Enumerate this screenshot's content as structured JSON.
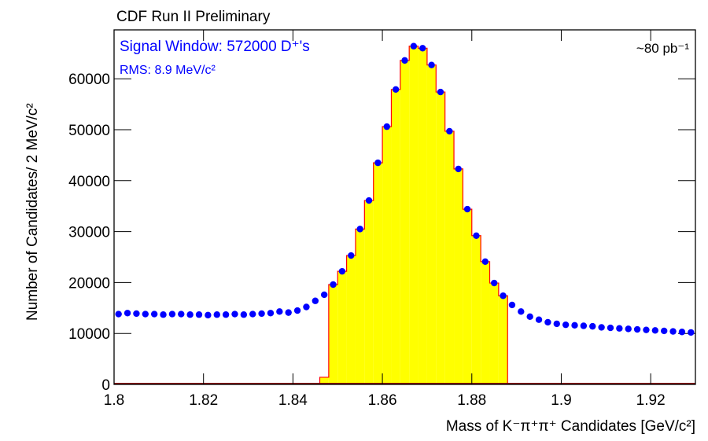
{
  "chart_data": {
    "type": "scatter",
    "title": "CDF Run II Preliminary",
    "x_label": "Mass of K⁻π⁺π⁺ Candidates [GeV/c²]",
    "y_label": "Number of Candidates/ 2 MeV/c²",
    "annotations": [
      "Signal Window:   572000 D⁺'s",
      "RMS: 8.9 MeV/c²",
      "~80 pb⁻¹"
    ],
    "xlim": [
      1.8,
      1.93
    ],
    "ylim": [
      0,
      69600
    ],
    "xticks": [
      1.8,
      1.82,
      1.84,
      1.86,
      1.88,
      1.9,
      1.92
    ],
    "yticks": [
      0,
      10000,
      20000,
      30000,
      40000,
      50000,
      60000
    ],
    "grid": false,
    "color": "#0000ff",
    "x": [
      1.801,
      1.803,
      1.805,
      1.807,
      1.809,
      1.811,
      1.813,
      1.815,
      1.817,
      1.819,
      1.821,
      1.823,
      1.825,
      1.827,
      1.829,
      1.831,
      1.833,
      1.835,
      1.837,
      1.839,
      1.841,
      1.843,
      1.845,
      1.847,
      1.849,
      1.851,
      1.853,
      1.855,
      1.857,
      1.859,
      1.861,
      1.863,
      1.865,
      1.867,
      1.869,
      1.871,
      1.873,
      1.875,
      1.877,
      1.879,
      1.881,
      1.883,
      1.885,
      1.887,
      1.889,
      1.891,
      1.893,
      1.895,
      1.897,
      1.899,
      1.901,
      1.903,
      1.905,
      1.907,
      1.909,
      1.911,
      1.913,
      1.915,
      1.917,
      1.919,
      1.921,
      1.923,
      1.925,
      1.927,
      1.929
    ],
    "values": [
      13800,
      14000,
      13900,
      13800,
      13800,
      13700,
      13800,
      13800,
      13700,
      13700,
      13600,
      13700,
      13700,
      13800,
      13700,
      13800,
      13900,
      14000,
      14300,
      14100,
      14500,
      15200,
      16400,
      17600,
      19600,
      22200,
      25300,
      30500,
      36100,
      43500,
      50600,
      57900,
      63600,
      66400,
      66000,
      62700,
      57400,
      49700,
      42300,
      34400,
      29200,
      24100,
      19900,
      17400,
      15600,
      14300,
      13300,
      12700,
      12200,
      11900,
      11700,
      11600,
      11500,
      11400,
      11200,
      11100,
      11000,
      10900,
      10800,
      10700,
      10600,
      10500,
      10400,
      10300,
      10200
    ],
    "histogram": {
      "fill": "#ffff00",
      "edge_color": "#ff0000",
      "bins": [
        1.846,
        1.848,
        1.85,
        1.852,
        1.854,
        1.856,
        1.858,
        1.86,
        1.862,
        1.864,
        1.866,
        1.868,
        1.87,
        1.872,
        1.874,
        1.876,
        1.878,
        1.88,
        1.882,
        1.884,
        1.886,
        1.888
      ],
      "counts": [
        1400,
        19600,
        22200,
        25300,
        30500,
        36100,
        43500,
        50600,
        57900,
        63600,
        66400,
        66000,
        62700,
        57400,
        49700,
        42300,
        34400,
        29200,
        24100,
        19900,
        17400
      ]
    }
  }
}
